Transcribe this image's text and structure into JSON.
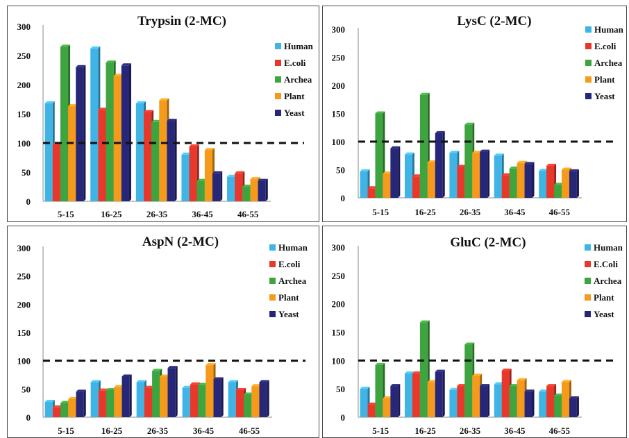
{
  "chart_data": [
    {
      "type": "bar",
      "title": "Trypsin (2-MC)",
      "categories": [
        "5-15",
        "16-25",
        "26-35",
        "36-45",
        "46-55"
      ],
      "ylim": [
        0,
        300
      ],
      "yticks": [
        0,
        50,
        100,
        150,
        200,
        250,
        300
      ],
      "reference_line": 100,
      "legend_position": "right",
      "series": [
        {
          "name": "Human",
          "color": "#41b4e6",
          "values": [
            168,
            262,
            168,
            80,
            42
          ]
        },
        {
          "name": "E.coli",
          "color": "#e8382b",
          "values": [
            97,
            157,
            153,
            94,
            48
          ]
        },
        {
          "name": "Archea",
          "color": "#3ea43f",
          "values": [
            265,
            238,
            136,
            35,
            25
          ]
        },
        {
          "name": "Plant",
          "color": "#f59a1b",
          "values": [
            163,
            215,
            173,
            88,
            38
          ]
        },
        {
          "name": "Yeast",
          "color": "#262778",
          "values": [
            230,
            233,
            138,
            48,
            35
          ]
        }
      ]
    },
    {
      "type": "bar",
      "title": "LysC (2-MC)",
      "categories": [
        "5-15",
        "16-25",
        "26-35",
        "36-45",
        "46-55"
      ],
      "ylim": [
        0,
        300
      ],
      "yticks": [
        0,
        50,
        100,
        150,
        200,
        250,
        300
      ],
      "reference_line": 100,
      "legend_position": "right",
      "series": [
        {
          "name": "Human",
          "color": "#41b4e6",
          "values": [
            47,
            77,
            80,
            75,
            48
          ]
        },
        {
          "name": "E.coli",
          "color": "#e8382b",
          "values": [
            17,
            38,
            55,
            40,
            57
          ]
        },
        {
          "name": "Archea",
          "color": "#3ea43f",
          "values": [
            150,
            183,
            130,
            52,
            23
          ]
        },
        {
          "name": "Plant",
          "color": "#f59a1b",
          "values": [
            43,
            63,
            80,
            62,
            50
          ]
        },
        {
          "name": "Yeast",
          "color": "#262778",
          "values": [
            88,
            115,
            82,
            60,
            47
          ]
        }
      ]
    },
    {
      "type": "bar",
      "title": "AspN (2-MC)",
      "categories": [
        "5-15",
        "16-25",
        "26-35",
        "36-45",
        "46-55"
      ],
      "ylim": [
        0,
        300
      ],
      "yticks": [
        0,
        50,
        100,
        150,
        200,
        250,
        300
      ],
      "reference_line": 100,
      "legend_position": "right",
      "series": [
        {
          "name": "Human",
          "color": "#41b4e6",
          "values": [
            27,
            62,
            62,
            52,
            62
          ]
        },
        {
          "name": "E.coli",
          "color": "#e8382b",
          "values": [
            17,
            47,
            52,
            58,
            48
          ]
        },
        {
          "name": "Archea",
          "color": "#3ea43f",
          "values": [
            25,
            48,
            82,
            57,
            40
          ]
        },
        {
          "name": "Plant",
          "color": "#f59a1b",
          "values": [
            32,
            53,
            72,
            92,
            55
          ]
        },
        {
          "name": "Yeast",
          "color": "#262778",
          "values": [
            45,
            72,
            87,
            67,
            62
          ]
        }
      ]
    },
    {
      "type": "bar",
      "title": "GluC (2-MC)",
      "categories": [
        "5-15",
        "16-25",
        "26-35",
        "36-45",
        "46-55"
      ],
      "ylim": [
        0,
        300
      ],
      "yticks": [
        0,
        50,
        100,
        150,
        200,
        250,
        300
      ],
      "reference_line": 100,
      "legend_position": "right",
      "series": [
        {
          "name": "Human",
          "color": "#41b4e6",
          "values": [
            50,
            77,
            48,
            58,
            45
          ]
        },
        {
          "name": "E.Coli",
          "color": "#e8382b",
          "values": [
            22,
            77,
            55,
            82,
            55
          ]
        },
        {
          "name": "Archea",
          "color": "#3ea43f",
          "values": [
            92,
            167,
            128,
            55,
            38
          ]
        },
        {
          "name": "Plant",
          "color": "#f59a1b",
          "values": [
            33,
            62,
            73,
            65,
            62
          ]
        },
        {
          "name": "Yeast",
          "color": "#262778",
          "values": [
            55,
            80,
            55,
            45,
            33
          ]
        }
      ]
    }
  ]
}
